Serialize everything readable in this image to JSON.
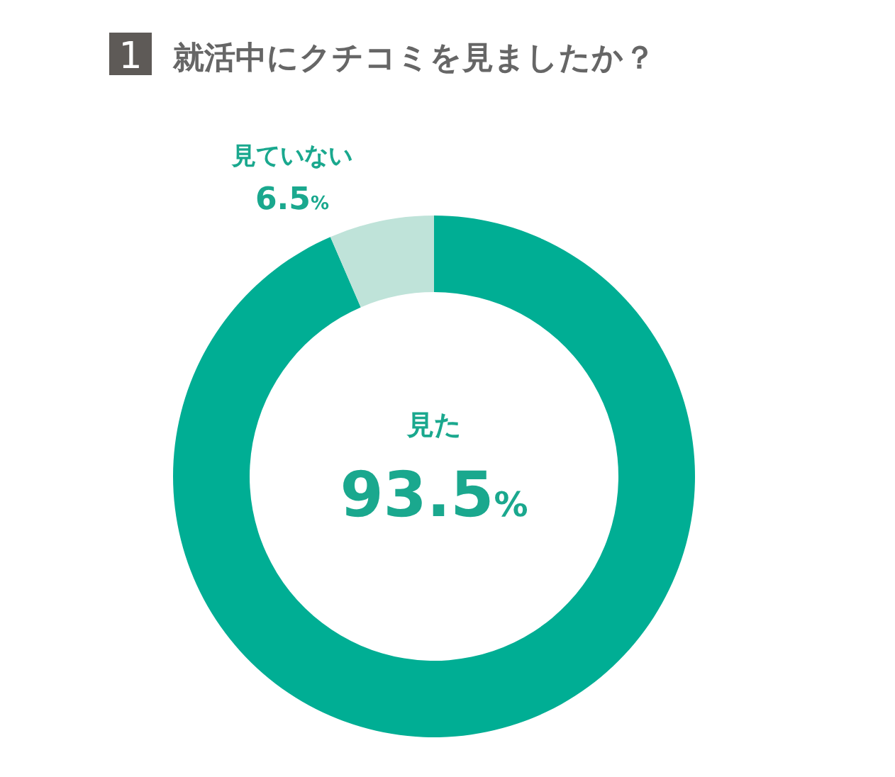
{
  "chart_data": {
    "type": "donut",
    "title": "就活中にクチコミを見ましたか？",
    "annotations": [
      "1"
    ],
    "categories": [
      "見た",
      "見ていない"
    ],
    "values": [
      93.5,
      6.5
    ],
    "colors": [
      "#00ae94",
      "#bfe3d9"
    ],
    "value_labels": [
      "93.5%",
      "6.5%"
    ]
  }
}
